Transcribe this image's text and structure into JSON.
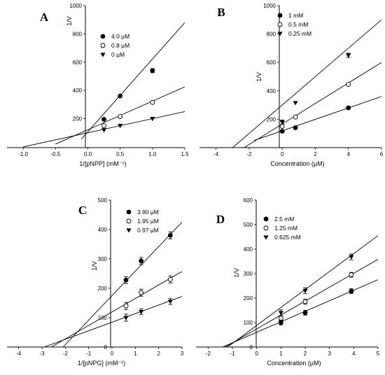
{
  "chart_data": [
    {
      "type": "scatter",
      "panel": "A",
      "xlabel": "1/[pNPP] (mM⁻¹)",
      "ylabel": "1/V",
      "xlim": [
        -1.25,
        1.5
      ],
      "ylim": [
        -5,
        1000
      ],
      "xticks": [
        "-1.0",
        "-0.5",
        "0.0",
        "0.5",
        "1.0",
        "1.5"
      ],
      "xtick_values": [
        -1.0,
        -0.5,
        0.0,
        0.5,
        1.0,
        1.5
      ],
      "yticks": [
        "200",
        "400",
        "600",
        "800",
        "1000"
      ],
      "ytick_values": [
        200,
        400,
        600,
        800,
        1000
      ],
      "legend": "top-left",
      "series": [
        {
          "name": "4.0 µM",
          "marker": "filled-circle",
          "x": [
            0.25,
            0.5,
            1.0
          ],
          "y": [
            195,
            360,
            540
          ],
          "err": [
            0,
            0,
            15
          ],
          "line": [
            [
              -0.1,
              55
            ],
            [
              1.5,
              880
            ]
          ]
        },
        {
          "name": "0.8 µM",
          "marker": "open-circle",
          "x": [
            0.25,
            0.5,
            1.0
          ],
          "y": [
            150,
            215,
            315
          ],
          "err": [
            0,
            0,
            0
          ],
          "line": [
            [
              -0.5,
              20
            ],
            [
              1.5,
              425
            ]
          ]
        },
        {
          "name": "0 µM",
          "marker": "filled-triangle-down",
          "x": [
            0.25,
            0.5,
            1.0
          ],
          "y": [
            120,
            150,
            200
          ],
          "err": [
            0,
            0,
            0
          ],
          "line": [
            [
              -1.0,
              0
            ],
            [
              1.5,
              250
            ]
          ]
        }
      ]
    },
    {
      "type": "scatter",
      "panel": "B",
      "xlabel": "Concentration (µM)",
      "ylabel": "1/V",
      "xlim": [
        -5,
        6
      ],
      "ylim": [
        0,
        1000
      ],
      "xticks": [
        "-4",
        "-2",
        "0",
        "2",
        "4",
        "6"
      ],
      "xtick_values": [
        -4,
        -2,
        0,
        2,
        4,
        6
      ],
      "yticks": [
        "200",
        "400",
        "600",
        "800",
        "1000"
      ],
      "ytick_values": [
        200,
        400,
        600,
        800,
        1000
      ],
      "legend": "top-right",
      "series": [
        {
          "name": "1 mM",
          "marker": "filled-circle",
          "x": [
            0,
            0.8,
            4
          ],
          "y": [
            115,
            140,
            280
          ],
          "err": [
            0,
            0,
            0
          ],
          "line": [
            [
              -1.7,
              50
            ],
            [
              6,
              360
            ]
          ]
        },
        {
          "name": "0.5 mM",
          "marker": "open-circle",
          "x": [
            0,
            0.8,
            4
          ],
          "y": [
            150,
            215,
            445
          ],
          "err": [
            0,
            0,
            0
          ],
          "line": [
            [
              -2.3,
              0
            ],
            [
              6,
              600
            ]
          ]
        },
        {
          "name": "0.25 mM",
          "marker": "filled-triangle-down",
          "x": [
            0,
            0.8,
            4
          ],
          "y": [
            180,
            315,
            650
          ],
          "err": [
            15,
            0,
            15
          ],
          "line": [
            [
              -3.0,
              0
            ],
            [
              6,
              900
            ]
          ]
        }
      ]
    },
    {
      "type": "scatter",
      "panel": "C",
      "xlabel": "1/[pNPG] (mM⁻¹)",
      "ylabel": "1/V",
      "xlim": [
        -4.5,
        3
      ],
      "ylim": [
        0,
        500
      ],
      "xticks": [
        "-4",
        "-3",
        "-2",
        "-1",
        "0",
        "1",
        "2",
        "3"
      ],
      "xtick_values": [
        -4,
        -3,
        -2,
        -1,
        0,
        1,
        2,
        3
      ],
      "yticks": [
        "0",
        "100",
        "200",
        "300",
        "400",
        "500"
      ],
      "ytick_values": [
        0,
        100,
        200,
        300,
        400,
        500
      ],
      "legend": "top-right",
      "series": [
        {
          "name": "3.90 µM",
          "marker": "filled-circle",
          "x": [
            0.6,
            1.25,
            2.5
          ],
          "y": [
            228,
            293,
            380
          ],
          "err": [
            12,
            12,
            12
          ],
          "line": [
            [
              -2.1,
              0
            ],
            [
              3,
              425
            ]
          ]
        },
        {
          "name": "1.95 µM",
          "marker": "open-circle",
          "x": [
            0.6,
            1.25,
            2.5
          ],
          "y": [
            140,
            185,
            230
          ],
          "err": [
            12,
            12,
            12
          ],
          "line": [
            [
              -2.6,
              0
            ],
            [
              3,
              257
            ]
          ]
        },
        {
          "name": "0.97 µM",
          "marker": "filled-triangle-down",
          "x": [
            0.6,
            1.25,
            2.5
          ],
          "y": [
            100,
            120,
            155
          ],
          "err": [
            12,
            10,
            10
          ],
          "line": [
            [
              -2.9,
              0
            ],
            [
              3,
              172
            ]
          ]
        }
      ]
    },
    {
      "type": "scatter",
      "panel": "D",
      "xlabel": "Concentration (µM)",
      "ylabel": "1/V",
      "xlim": [
        -2.5,
        5
      ],
      "ylim": [
        0,
        600
      ],
      "xticks": [
        "-2",
        "-1",
        "0",
        "1",
        "2",
        "3",
        "4",
        "5"
      ],
      "xtick_values": [
        -2,
        -1,
        0,
        1,
        2,
        3,
        4,
        5
      ],
      "yticks": [
        "0",
        "100",
        "200",
        "300",
        "400",
        "500",
        "600"
      ],
      "ytick_values": [
        0,
        100,
        200,
        300,
        400,
        500,
        600
      ],
      "legend": "top-left",
      "series": [
        {
          "name": "2.5 mM",
          "marker": "filled-circle",
          "x": [
            1,
            2,
            3.9
          ],
          "y": [
            100,
            140,
            228
          ],
          "err": [
            10,
            10,
            10
          ],
          "line": [
            [
              -1.4,
              0
            ],
            [
              5,
              275
            ]
          ]
        },
        {
          "name": "1.25 mM",
          "marker": "open-circle",
          "x": [
            1,
            2,
            3.9
          ],
          "y": [
            118,
            185,
            295
          ],
          "err": [
            10,
            10,
            10
          ],
          "line": [
            [
              -1.3,
              0
            ],
            [
              5,
              358
            ]
          ]
        },
        {
          "name": "0.625 mM",
          "marker": "filled-triangle-down",
          "x": [
            1,
            2,
            3.9
          ],
          "y": [
            140,
            230,
            368
          ],
          "err": [
            12,
            12,
            12
          ],
          "line": [
            [
              -1.2,
              0
            ],
            [
              5,
              455
            ]
          ]
        }
      ]
    }
  ]
}
